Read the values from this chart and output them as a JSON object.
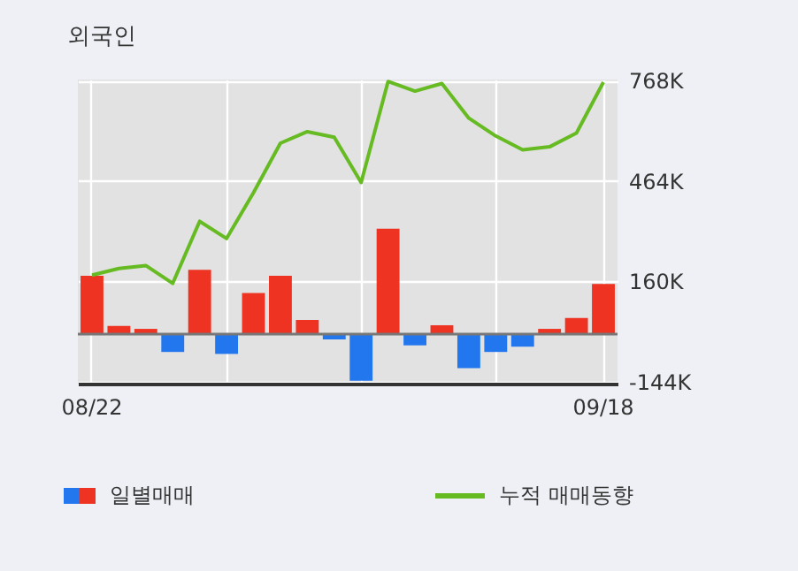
{
  "chart_data": {
    "type": "bar",
    "title": "외국인",
    "categories": [
      "08/22",
      null,
      null,
      null,
      null,
      null,
      null,
      null,
      null,
      null,
      null,
      null,
      null,
      null,
      null,
      null,
      null,
      null,
      null,
      "09/18"
    ],
    "series": [
      {
        "name": "일별매매",
        "colors": [
          "#ee3322",
          "#ee3322",
          "#ee3322",
          "#2277ee",
          "#ee3322",
          "#2277ee",
          "#ee3322",
          "#ee3322",
          "#ee3322",
          "#2277ee",
          "#2277ee",
          "#ee3322",
          "#2277ee",
          "#ee3322",
          "#2277ee",
          "#2277ee",
          "#2277ee",
          "#ee3322",
          "#ee3322",
          "#ee3322"
        ],
        "values": [
          177,
          25,
          16,
          -54,
          195,
          -60,
          125,
          177,
          43,
          -16,
          -141,
          320,
          -34,
          27,
          -103,
          -54,
          -38,
          16,
          49,
          152
        ]
      },
      {
        "name": "누적 매매동향",
        "type": "line",
        "color": "#66bb22",
        "values": [
          179,
          199,
          208,
          154,
          342,
          290,
          429,
          579,
          614,
          597,
          460,
          766,
          737,
          760,
          655,
          601,
          559,
          568,
          610,
          764
        ]
      }
    ],
    "ylim": [
      -150,
      772
    ],
    "yticks": [
      {
        "value": 768,
        "label": "768K"
      },
      {
        "value": 464,
        "label": "464K"
      },
      {
        "value": 160,
        "label": "160K"
      },
      {
        "value": -144,
        "label": "-144K"
      }
    ],
    "grid": true,
    "legend": "bottom"
  }
}
